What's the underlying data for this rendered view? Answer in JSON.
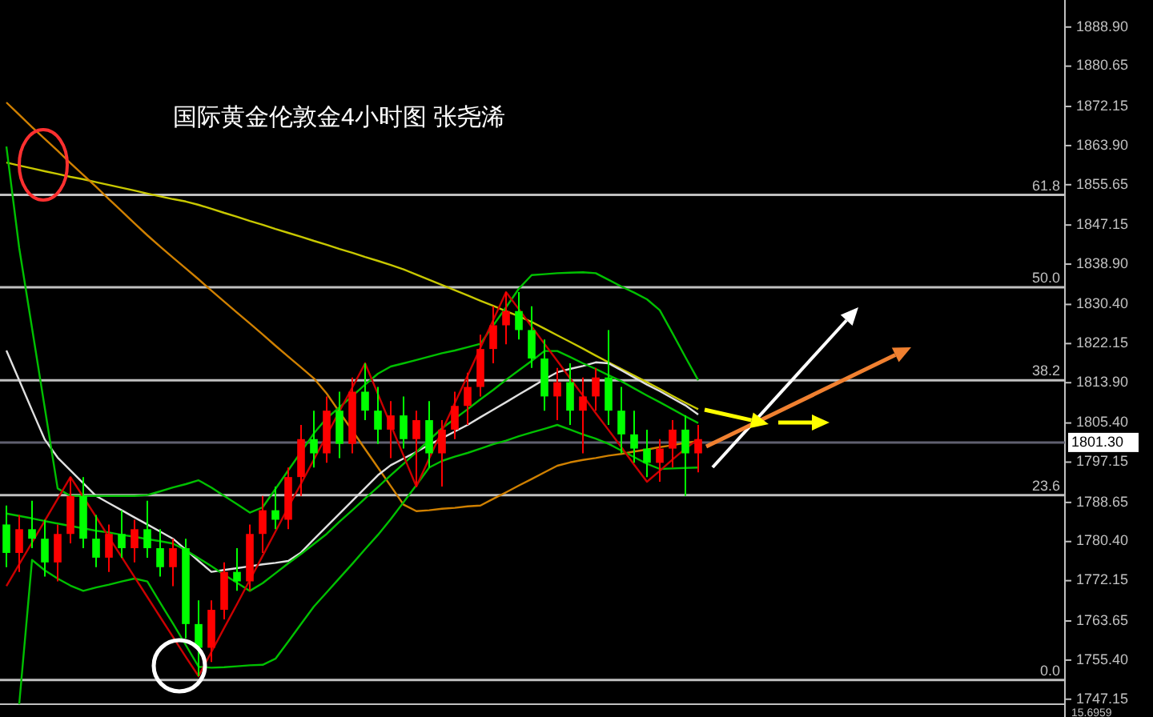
{
  "chart_data": {
    "type": "candlestick",
    "title": "国际黄金伦敦金4小时图  张尧浠",
    "categories": [
      null,
      null,
      null,
      null,
      null,
      null,
      null,
      null,
      null,
      null,
      null,
      null,
      null,
      null,
      null,
      null,
      null,
      null,
      null,
      null,
      null,
      null,
      null,
      null,
      null,
      null,
      null,
      null,
      null,
      null,
      null,
      null,
      null,
      null,
      null,
      null,
      null,
      null,
      null,
      null,
      null,
      null,
      null,
      null,
      null,
      null,
      null,
      null,
      null,
      null,
      null,
      null,
      null,
      null,
      null
    ],
    "ohlc": [
      [
        1784,
        1788,
        1775,
        1778
      ],
      [
        1778,
        1786,
        1774,
        1783
      ],
      [
        1783,
        1789,
        1779,
        1781
      ],
      [
        1781,
        1785,
        1773,
        1776
      ],
      [
        1776,
        1784,
        1772,
        1782
      ],
      [
        1782,
        1794,
        1780,
        1790
      ],
      [
        1790,
        1794,
        1779,
        1781
      ],
      [
        1781,
        1786,
        1775,
        1777
      ],
      [
        1777,
        1784,
        1774,
        1782
      ],
      [
        1782,
        1787,
        1777,
        1779
      ],
      [
        1779,
        1785,
        1776,
        1783
      ],
      [
        1783,
        1789,
        1777,
        1779
      ],
      [
        1779,
        1783,
        1773,
        1775
      ],
      [
        1775,
        1781,
        1771,
        1779
      ],
      [
        1779,
        1781,
        1760,
        1763
      ],
      [
        1763,
        1768,
        1752,
        1758
      ],
      [
        1758,
        1768,
        1755,
        1766
      ],
      [
        1766,
        1776,
        1764,
        1774
      ],
      [
        1774,
        1779,
        1770,
        1772
      ],
      [
        1772,
        1784,
        1770,
        1782
      ],
      [
        1782,
        1790,
        1778,
        1787
      ],
      [
        1787,
        1792,
        1783,
        1785
      ],
      [
        1785,
        1796,
        1783,
        1794
      ],
      [
        1794,
        1805,
        1790,
        1802
      ],
      [
        1802,
        1808,
        1796,
        1799
      ],
      [
        1799,
        1811,
        1797,
        1808
      ],
      [
        1808,
        1812,
        1798,
        1801
      ],
      [
        1801,
        1815,
        1799,
        1812
      ],
      [
        1812,
        1818,
        1806,
        1808
      ],
      [
        1808,
        1813,
        1801,
        1804
      ],
      [
        1804,
        1810,
        1798,
        1807
      ],
      [
        1807,
        1811,
        1800,
        1802
      ],
      [
        1802,
        1808,
        1792,
        1806
      ],
      [
        1806,
        1810,
        1796,
        1799
      ],
      [
        1799,
        1806,
        1792,
        1804
      ],
      [
        1804,
        1812,
        1802,
        1809
      ],
      [
        1809,
        1816,
        1805,
        1813
      ],
      [
        1813,
        1824,
        1811,
        1821
      ],
      [
        1821,
        1830,
        1818,
        1826
      ],
      [
        1826,
        1833,
        1822,
        1829
      ],
      [
        1829,
        1833,
        1823,
        1825
      ],
      [
        1825,
        1830,
        1817,
        1819
      ],
      [
        1819,
        1823,
        1808,
        1811
      ],
      [
        1811,
        1817,
        1806,
        1814
      ],
      [
        1814,
        1818,
        1805,
        1808
      ],
      [
        1808,
        1815,
        1799,
        1811
      ],
      [
        1811,
        1817,
        1808,
        1815
      ],
      [
        1815,
        1825,
        1805,
        1808
      ],
      [
        1808,
        1813,
        1799,
        1803
      ],
      [
        1803,
        1808,
        1797,
        1800
      ],
      [
        1800,
        1804,
        1794,
        1797
      ],
      [
        1797,
        1802,
        1793,
        1800
      ],
      [
        1800,
        1806,
        1796,
        1804
      ],
      [
        1804,
        1807,
        1790,
        1799
      ],
      [
        1799,
        1805,
        1795,
        1802
      ]
    ],
    "colors": [
      "#00ff00",
      "#ff0000",
      "#00ff00",
      "#00ff00",
      "#ff0000",
      "#ff0000",
      "#00ff00",
      "#00ff00",
      "#ff0000",
      "#00ff00",
      "#ff0000",
      "#00ff00",
      "#00ff00",
      "#ff0000",
      "#00ff00",
      "#00ff00",
      "#ff0000",
      "#ff0000",
      "#00ff00",
      "#ff0000",
      "#ff0000",
      "#00ff00",
      "#ff0000",
      "#ff0000",
      "#00ff00",
      "#ff0000",
      "#00ff00",
      "#ff0000",
      "#00ff00",
      "#00ff00",
      "#ff0000",
      "#00ff00",
      "#ff0000",
      "#00ff00",
      "#ff0000",
      "#ff0000",
      "#ff0000",
      "#ff0000",
      "#ff0000",
      "#ff0000",
      "#00ff00",
      "#00ff00",
      "#00ff00",
      "#ff0000",
      "#00ff00",
      "#ff0000",
      "#ff0000",
      "#00ff00",
      "#00ff00",
      "#00ff00",
      "#00ff00",
      "#ff0000",
      "#ff0000",
      "#00ff00",
      "#ff0000"
    ],
    "series": [
      {
        "type": "line",
        "color": "#c8c800",
        "values": [
          1860.3,
          1859.7,
          1859.1,
          1858.5,
          1857.9,
          1857.3,
          1856.8,
          1856.2,
          1855.6,
          1855.0,
          1854.4,
          1853.8,
          1853.2,
          1852.6,
          1852.1,
          1851.4,
          1850.6,
          1849.7,
          1848.9,
          1848.0,
          1847.2,
          1846.3,
          1845.5,
          1844.7,
          1843.8,
          1843.0,
          1842.1,
          1841.3,
          1840.4,
          1839.6,
          1838.7,
          1837.8,
          1836.7,
          1835.6,
          1834.5,
          1833.4,
          1832.3,
          1831.2,
          1830.1,
          1829.0,
          1827.9,
          1826.7,
          1825.3,
          1823.9,
          1822.5,
          1821.1,
          1819.6,
          1818.2,
          1816.8,
          1815.4,
          1814.0,
          1812.6,
          1811.1,
          1809.7,
          1808.3
        ]
      },
      {
        "type": "line",
        "color": "#d08000",
        "values": [
          1873,
          1870.4,
          1867.8,
          1865.3,
          1862.8,
          1860.2,
          1857.7,
          1855.2,
          1852.6,
          1850.1,
          1847.5,
          1845.0,
          1842.6,
          1840.3,
          1838.0,
          1835.7,
          1833.3,
          1831.0,
          1828.7,
          1826.4,
          1824.1,
          1821.7,
          1819.4,
          1817.1,
          1814.8,
          1811.6,
          1807.7,
          1803.8,
          1799.9,
          1796.0,
          1792.1,
          1788.2,
          1786.8,
          1787.0,
          1787.3,
          1787.5,
          1787.8,
          1788.0,
          1789.4,
          1790.8,
          1792.2,
          1793.6,
          1795.0,
          1796.4,
          1797.1,
          1797.6,
          1798.0,
          1798.5,
          1798.9,
          1799.4,
          1799.8,
          1800.3,
          1800.7,
          1801.2,
          1801.6
        ]
      },
      {
        "type": "line",
        "color": "#e0e0e0",
        "values": [
          1820.7,
          1814.4,
          1808.1,
          1801.9,
          1798.1,
          1795.4,
          1792.7,
          1790,
          1788.5,
          1787,
          1785.5,
          1784,
          1782.5,
          1781,
          1778.7,
          1776.3,
          1774,
          1774.4,
          1774.8,
          1775.2,
          1775.6,
          1775.9,
          1776.3,
          1778.1,
          1780.9,
          1783.6,
          1786.3,
          1789.0,
          1791.7,
          1794.4,
          1796.5,
          1797.9,
          1799.3,
          1800.8,
          1802.2,
          1803.6,
          1805,
          1806.6,
          1808.2,
          1809.8,
          1811.4,
          1813.0,
          1814.6,
          1816.1,
          1816.8,
          1817.4,
          1818.2,
          1818.0,
          1816.5,
          1815.0,
          1813.5,
          1812.1,
          1810.6,
          1809.1,
          1807.2
        ]
      },
      {
        "type": "line",
        "color": "#00c000",
        "values": [
          1863.7,
          1842.3,
          1825.4,
          1808.5,
          1791.6,
          1790,
          1790,
          1790,
          1790,
          1790,
          1790,
          1790.2,
          1791.0,
          1791.8,
          1792.5,
          1793.3,
          1791.8,
          1790.0,
          1788.3,
          1786.5,
          1787.6,
          1791.5,
          1795.4,
          1799.3,
          1803.2,
          1806.4,
          1808.7,
          1811.1,
          1813.5,
          1815.8,
          1817.3,
          1818.0,
          1818.7,
          1819.4,
          1820.1,
          1820.7,
          1821.4,
          1822.1,
          1826.0,
          1829.8,
          1833.7,
          1836.6,
          1836.8,
          1837.0,
          1837.1,
          1837.2,
          1837.0,
          1835.6,
          1834.2,
          1832.9,
          1831.5,
          1829.2,
          1824.3,
          1819.3,
          1814.4
        ]
      },
      {
        "type": "line",
        "color": "#00c000",
        "values": [
          1786.3,
          1785.8,
          1785.3,
          1784.7,
          1784.2,
          1783.7,
          1783.2,
          1782.7,
          1782.3,
          1781.8,
          1781.4,
          1780.9,
          1780.5,
          1780.0,
          1778.6,
          1776.9,
          1775.2,
          1773.4,
          1771.7,
          1770.0,
          1771.6,
          1773.7,
          1775.8,
          1777.8,
          1779.9,
          1782.0,
          1784.6,
          1787.0,
          1789.5,
          1791.9,
          1794.4,
          1796.8,
          1799.3,
          1801.8,
          1804.3,
          1806.3,
          1808.3,
          1810.4,
          1812.4,
          1814.5,
          1816.5,
          1818.5,
          1820.6,
          1820.6,
          1819.3,
          1818.0,
          1816.8,
          1815.5,
          1814.2,
          1812.7,
          1811.2,
          1809.8,
          1808.3,
          1806.8,
          1805.4
        ]
      },
      {
        "type": "line",
        "color": "#00c000",
        "values": [
          null,
          1746.1,
          1776.5,
          1774.3,
          1772.6,
          1771.1,
          1770.0,
          1770.7,
          1771.3,
          1772.0,
          1772.6,
          1772.0,
          1767.5,
          1763.1,
          1758.6,
          1754.0,
          1753.8,
          1753.9,
          1754.1,
          1754.3,
          1754.4,
          1755.7,
          1759.3,
          1763.0,
          1766.7,
          1769.7,
          1772.7,
          1775.7,
          1778.8,
          1781.8,
          1785.1,
          1788.7,
          1792.3,
          1796.0,
          1797.4,
          1798.3,
          1799.1,
          1800.0,
          1800.9,
          1801.7,
          1802.6,
          1803.4,
          1804.2,
          1805.0,
          1804.0,
          1803.0,
          1802.1,
          1801.0,
          1799.6,
          1798.2,
          1796.8,
          1795.7,
          1795.8,
          1795.9,
          1796.0
        ]
      },
      {
        "type": "line",
        "color": "#cc0000",
        "values": [
          1771,
          1775.6,
          1780.2,
          1784.8,
          1789.4,
          1794,
          1789.8,
          1785.6,
          1781.3,
          1777.1,
          1772.9,
          1768.7,
          1764.5,
          1760.3,
          1756.1,
          1752,
          1757.1,
          1762.2,
          1767.2,
          1772.3,
          1777.4,
          1782.5,
          1787.6,
          1792.6,
          1797.7,
          1802.8,
          1807.9,
          1812.9,
          1818,
          1811.5,
          1805,
          1798.5,
          1792,
          1797.9,
          1803.7,
          1809.6,
          1815.4,
          1821.3,
          1827.1,
          1833,
          1829.4,
          1825.7,
          1822.1,
          1818.5,
          1814.8,
          1811.2,
          1807.5,
          1803.9,
          1800.3,
          1796.6,
          1793,
          1795.3,
          1797.7,
          1800,
          1802
        ]
      }
    ],
    "ylim": [
      1746.1,
      1894.6
    ],
    "yticks": [
      {
        "value": 1888.9,
        "label": "1888.90"
      },
      {
        "value": 1880.65,
        "label": "1880.65"
      },
      {
        "value": 1872.15,
        "label": "1872.15"
      },
      {
        "value": 1863.9,
        "label": "1863.90"
      },
      {
        "value": 1855.65,
        "label": "1855.65"
      },
      {
        "value": 1847.15,
        "label": "1847.15"
      },
      {
        "value": 1838.9,
        "label": "1838.90"
      },
      {
        "value": 1830.4,
        "label": "1830.40"
      },
      {
        "value": 1822.15,
        "label": "1822.15"
      },
      {
        "value": 1813.9,
        "label": "1813.90"
      },
      {
        "value": 1805.4,
        "label": "1805.40"
      },
      {
        "value": 1797.15,
        "label": "1797.15"
      },
      {
        "value": 1788.65,
        "label": "1788.65"
      },
      {
        "value": 1780.4,
        "label": "1780.40"
      },
      {
        "value": 1772.15,
        "label": "1772.15"
      },
      {
        "value": 1763.65,
        "label": "1763.65"
      },
      {
        "value": 1755.4,
        "label": "1755.40"
      },
      {
        "value": 1747.15,
        "label": "1747.15"
      }
    ],
    "tick_labels": "y",
    "ref_lines": [
      {
        "axis": "y",
        "value": 1853.5,
        "color": "#c0c0c0"
      },
      {
        "axis": "y",
        "value": 1834,
        "color": "#c0c0c0"
      },
      {
        "axis": "y",
        "value": 1814.4,
        "color": "#c0c0c0"
      },
      {
        "axis": "y",
        "value": 1790.2,
        "color": "#c0c0c0"
      },
      {
        "axis": "y",
        "value": 1751.2,
        "color": "#c0c0c0"
      },
      {
        "axis": "y",
        "value": 1801.3,
        "label": "1801.30",
        "color": "#606070"
      }
    ],
    "annotations": [
      {
        "text": "61.8",
        "y": 1853.5
      },
      {
        "text": "50.0",
        "y": 1834
      },
      {
        "text": "38.2",
        "y": 1814.4
      },
      {
        "text": "23.6",
        "y": 1790.2
      },
      {
        "text": "0.0",
        "y": 1751.2
      },
      "15.6959"
    ]
  }
}
